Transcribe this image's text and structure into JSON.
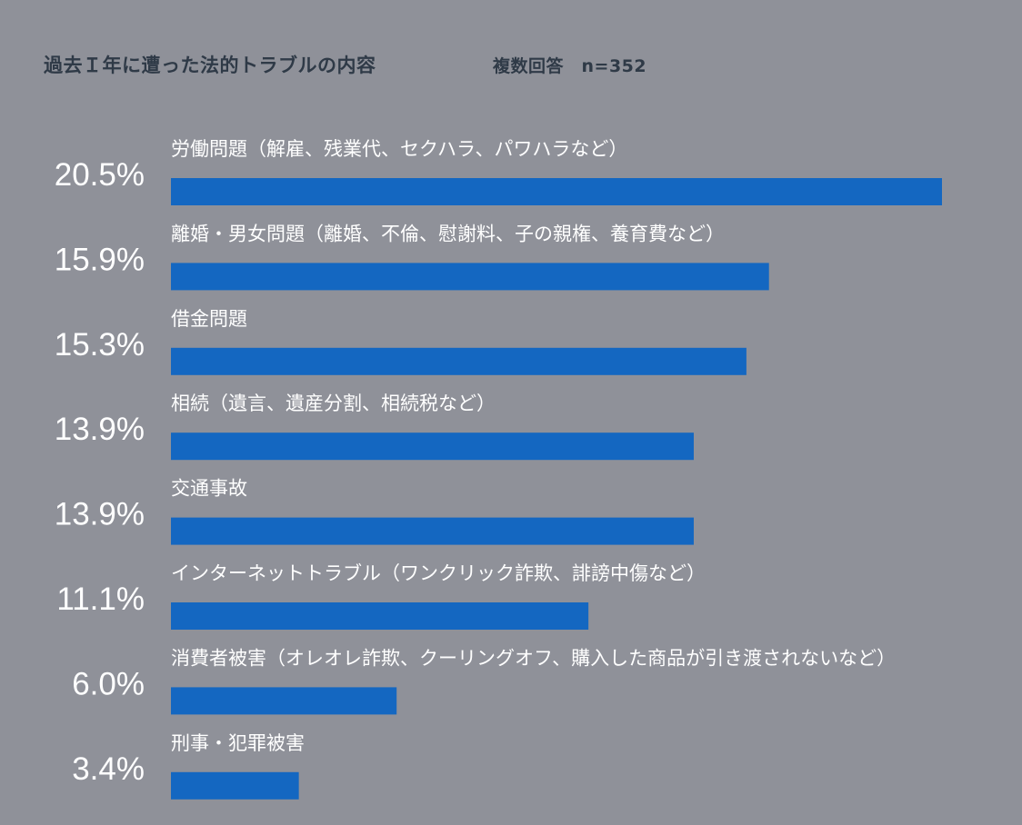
{
  "chart_data": {
    "type": "bar",
    "orientation": "horizontal",
    "title": "過去Ｉ年に遭った法的トラブルの内容",
    "note": "複数回答　n=352",
    "unit": "%",
    "color": "#1467c1",
    "background": "#8f9199",
    "grid": false,
    "legend": "none",
    "xlim": [
      0,
      20.5
    ],
    "categories": [
      "労働問題（解雇、残業代、セクハラ、パワハラなど）",
      "離婚・男女問題（離婚、不倫、慰謝料、子の親権、養育費など）",
      "借金問題",
      "相続（遺言、遺産分割、相続税など）",
      "交通事故",
      "インターネットトラブル（ワンクリック詐欺、誹謗中傷など）",
      "消費者被害（オレオレ詐欺、クーリングオフ、購入した商品が引き渡されないなど）",
      "刑事・犯罪被害"
    ],
    "values": [
      20.5,
      15.9,
      15.3,
      13.9,
      13.9,
      11.1,
      6.0,
      3.4
    ],
    "value_labels": [
      "20.5%",
      "15.9%",
      "15.3%",
      "13.9%",
      "13.9%",
      "11.1%",
      "6.0%",
      "3.4%"
    ]
  }
}
